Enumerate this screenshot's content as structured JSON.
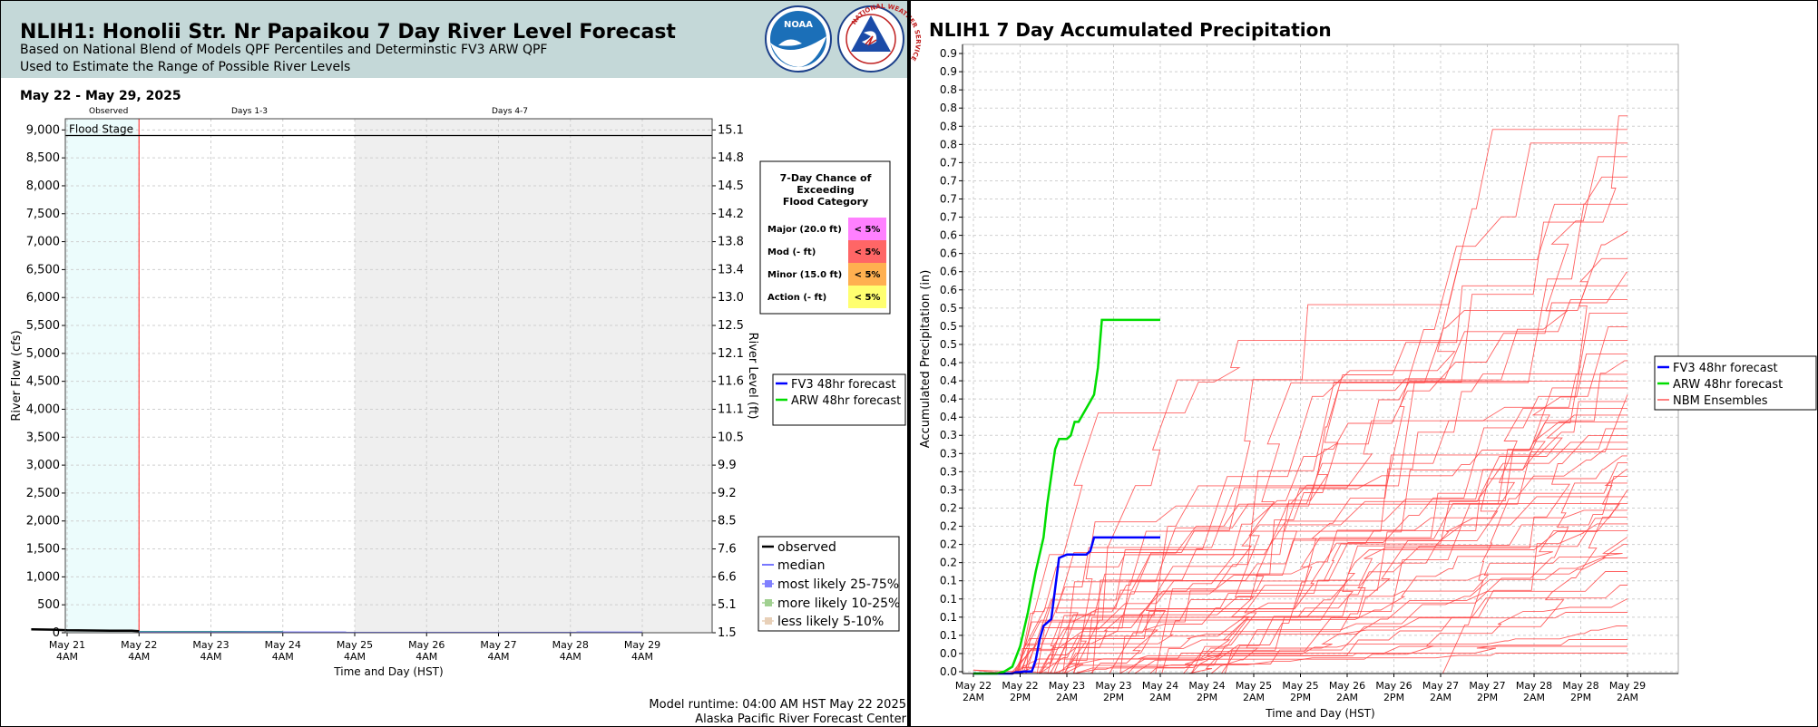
{
  "header": {
    "title": "NLIH1: Honolii Str. Nr Papaikou 7 Day River Level Forecast",
    "subtitle1": "Based on National Blend of Models QPF Percentiles and Determinstic FV3 ARW QPF",
    "subtitle2": "Used to Estimate the Range of Possible River Levels",
    "noaa_logo_text": "NOAA",
    "nws_logo_text": "NATIONAL WEATHER SERVICE",
    "bg_color": "#c4d8d8"
  },
  "footer": {
    "runtime": "Model runtime: 04:00 AM HST May 22 2025",
    "center": "Alaska Pacific River Forecast Center"
  },
  "chart_data": [
    {
      "type": "line",
      "date_range": "May 22 - May 29, 2025",
      "period_labels": [
        "Observed",
        "Days 1-3",
        "Days 4-7"
      ],
      "flood_stage_label": "Flood Stage",
      "flood_stage_flow": 8900,
      "xlabel": "Time and Day (HST)",
      "ylabel_left": "River Flow (cfs)",
      "ylabel_right": "River Level (ft)",
      "x_ticks": [
        {
          "day": "May 21",
          "time": "4AM"
        },
        {
          "day": "May 22",
          "time": "4AM"
        },
        {
          "day": "May 23",
          "time": "4AM"
        },
        {
          "day": "May 24",
          "time": "4AM"
        },
        {
          "day": "May 25",
          "time": "4AM"
        },
        {
          "day": "May 26",
          "time": "4AM"
        },
        {
          "day": "May 27",
          "time": "4AM"
        },
        {
          "day": "May 28",
          "time": "4AM"
        },
        {
          "day": "May 29",
          "time": "4AM"
        }
      ],
      "y_ticks_left": [
        "0",
        "500",
        "1,000",
        "1,500",
        "2,000",
        "2,500",
        "3,000",
        "3,500",
        "4,000",
        "4,500",
        "5,000",
        "5,500",
        "6,000",
        "6,500",
        "7,000",
        "7,500",
        "8,000",
        "8,500",
        "9,000"
      ],
      "y_ticks_right": [
        "1.5",
        "5.1",
        "6.6",
        "7.6",
        "8.5",
        "9.2",
        "9.9",
        "10.5",
        "11.1",
        "11.6",
        "12.1",
        "12.5",
        "13.0",
        "13.4",
        "13.8",
        "14.2",
        "14.5",
        "14.8",
        "15.1"
      ],
      "ylim_left": [
        0,
        9200
      ],
      "series": [
        {
          "name": "observed",
          "color": "#000000",
          "x_days": [
            -1.5,
            -1.2,
            -1.0,
            -0.7,
            -0.4,
            -0.1,
            0.0
          ],
          "y": [
            60,
            55,
            45,
            40,
            38,
            36,
            30
          ]
        },
        {
          "name": "FV3 48hr forecast",
          "color": "#0000ff",
          "x_days": [
            0.0,
            0.5,
            1.0,
            1.5,
            2.0
          ],
          "y": [
            15,
            14,
            14,
            13,
            13
          ]
        },
        {
          "name": "ARW 48hr forecast",
          "color": "#00dd00",
          "x_days": [
            0.0,
            0.5,
            1.0,
            1.5,
            2.0
          ],
          "y": [
            15,
            14,
            14,
            13,
            13
          ]
        },
        {
          "name": "median",
          "color": "#7777ff",
          "x_days": [
            0.0,
            7.0
          ],
          "y": [
            14,
            12
          ]
        }
      ],
      "legend_forecast": [
        {
          "name": "FV3 48hr forecast",
          "color": "#0000ff"
        },
        {
          "name": "ARW 48hr forecast",
          "color": "#00dd00"
        }
      ],
      "legend_bottom": [
        {
          "name": "observed",
          "color": "#000000",
          "kind": "line"
        },
        {
          "name": "median",
          "color": "#7777ff",
          "kind": "line"
        },
        {
          "name": "most likely 25-75%",
          "color": "#8080ff",
          "kind": "box"
        },
        {
          "name": "more likely 10-25%",
          "color": "#a0d090",
          "kind": "box"
        },
        {
          "name": "less likely 5-10%",
          "color": "#e8d0b8",
          "kind": "box"
        }
      ],
      "flood_table": {
        "title_lines": [
          "7-Day Chance of",
          "Exceeding",
          "Flood Category"
        ],
        "rows": [
          {
            "label": "Major (20.0 ft)",
            "value": "< 5%",
            "color": "#ff80ff"
          },
          {
            "label": "Mod (- ft)",
            "value": "< 5%",
            "color": "#ff6666"
          },
          {
            "label": "Minor (15.0 ft)",
            "value": "< 5%",
            "color": "#ffb050"
          },
          {
            "label": "Action (- ft)",
            "value": "< 5%",
            "color": "#ffff70"
          }
        ]
      },
      "colors": {
        "observed_region": "#ecfcfc",
        "days47_region": "#efefef",
        "now_line": "#ff4444"
      }
    },
    {
      "type": "line",
      "title": "NLIH1 7 Day Accumulated Precipitation",
      "xlabel": "Time and Day (HST)",
      "ylabel": "Accumulated Precipitation (in)",
      "x_ticks": [
        {
          "day": "May 22",
          "time": "2AM"
        },
        {
          "day": "May 22",
          "time": "2PM"
        },
        {
          "day": "May 23",
          "time": "2AM"
        },
        {
          "day": "May 23",
          "time": "2PM"
        },
        {
          "day": "May 24",
          "time": "2AM"
        },
        {
          "day": "May 24",
          "time": "2PM"
        },
        {
          "day": "May 25",
          "time": "2AM"
        },
        {
          "day": "May 25",
          "time": "2PM"
        },
        {
          "day": "May 26",
          "time": "2AM"
        },
        {
          "day": "May 26",
          "time": "2PM"
        },
        {
          "day": "May 27",
          "time": "2AM"
        },
        {
          "day": "May 27",
          "time": "2PM"
        },
        {
          "day": "May 28",
          "time": "2AM"
        },
        {
          "day": "May 28",
          "time": "2PM"
        },
        {
          "day": "May 29",
          "time": "2AM"
        }
      ],
      "y_tick_labels": [
        "0.0",
        "0.0",
        "0.1",
        "0.1",
        "0.1",
        "0.1",
        "0.2",
        "0.2",
        "0.2",
        "0.2",
        "0.3",
        "0.3",
        "0.3",
        "0.3",
        "0.4",
        "0.4",
        "0.4",
        "0.4",
        "0.5",
        "0.5",
        "0.5",
        "0.6",
        "0.6",
        "0.6",
        "0.6",
        "0.7",
        "0.7",
        "0.7",
        "0.7",
        "0.8",
        "0.8",
        "0.8",
        "0.8",
        "0.9",
        "0.9"
      ],
      "ylim": [
        0,
        0.925
      ],
      "legend": [
        {
          "name": "FV3 48hr forecast",
          "color": "#0000ff"
        },
        {
          "name": "ARW 48hr forecast",
          "color": "#00dd00"
        },
        {
          "name": "NBM Ensembles",
          "color": "#ff5555"
        }
      ],
      "series": [
        {
          "name": "FV3 48hr forecast",
          "color": "#0000ff",
          "x_hours": [
            0,
            6,
            10,
            11,
            12,
            13,
            14,
            15,
            16,
            17,
            18,
            20,
            22,
            24,
            26,
            27,
            28,
            29,
            30,
            31,
            32,
            34,
            36,
            40,
            48
          ],
          "y": [
            0,
            0,
            0,
            0.002,
            0.002,
            0.003,
            0.003,
            0.003,
            0.02,
            0.05,
            0.07,
            0.08,
            0.17,
            0.175,
            0.175,
            0.175,
            0.175,
            0.175,
            0.18,
            0.2,
            0.2,
            0.2,
            0.2,
            0.2,
            0.2
          ]
        },
        {
          "name": "ARW 48hr forecast",
          "color": "#00dd00",
          "x_hours": [
            0,
            6,
            8,
            10,
            12,
            14,
            16,
            18,
            19,
            20,
            21,
            22,
            23,
            24,
            25,
            26,
            27,
            28,
            30,
            31,
            32,
            33,
            34,
            48
          ],
          "y": [
            0,
            0,
            0.003,
            0.01,
            0.04,
            0.09,
            0.15,
            0.2,
            0.25,
            0.29,
            0.33,
            0.345,
            0.345,
            0.345,
            0.35,
            0.37,
            0.37,
            0.38,
            0.4,
            0.41,
            0.45,
            0.52,
            0.52,
            0.52
          ]
        }
      ],
      "ensemble_final_values": [
        0.82,
        0.8,
        0.78,
        0.76,
        0.73,
        0.69,
        0.65,
        0.61,
        0.59,
        0.57,
        0.55,
        0.53,
        0.51,
        0.49,
        0.47,
        0.46,
        0.44,
        0.43,
        0.42,
        0.41,
        0.4,
        0.39,
        0.38,
        0.37,
        0.36,
        0.35,
        0.34,
        0.33,
        0.32,
        0.31,
        0.3,
        0.29,
        0.28,
        0.27,
        0.26,
        0.25,
        0.24,
        0.23,
        0.22,
        0.21,
        0.2,
        0.19,
        0.17,
        0.15,
        0.13,
        0.11,
        0.09,
        0.07,
        0.05,
        0.04,
        0.03
      ],
      "ensemble_color": "#ff4444"
    }
  ]
}
